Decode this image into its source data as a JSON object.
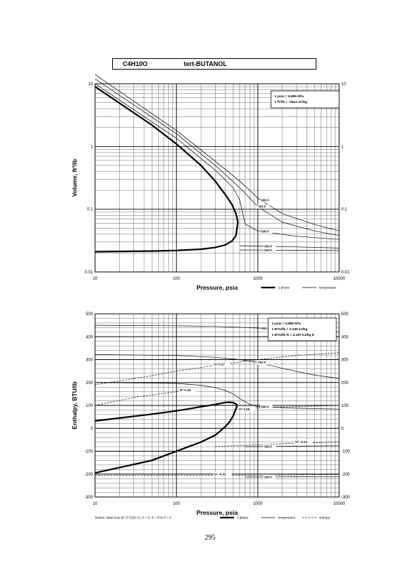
{
  "header": {
    "formula": "C4H10O",
    "compound": "tert-BUTANOL"
  },
  "page_number": "295",
  "chart_data": [
    {
      "type": "line",
      "scale": {
        "x": "log",
        "y": "log"
      },
      "xlabel": "Pressure,  psia",
      "ylabel": "Volume, ft^3/lb",
      "xlim": [
        10,
        10000
      ],
      "ylim": [
        0.01,
        10
      ],
      "x_ticks": [
        "10",
        "100",
        "1000",
        "10000"
      ],
      "y_ticks": [
        "0.01",
        "0.1",
        "1",
        "10"
      ],
      "grid": true,
      "conversions": [
        "1 psia  =  6.895 kPa",
        "1 ft^3/lb  =  .0624 m^3/kg"
      ],
      "legend": [
        {
          "label": "2 phase",
          "style": "thick"
        },
        {
          "label": "temperature",
          "style": "thin"
        }
      ],
      "series": [
        {
          "style": "thick",
          "x": [
            10,
            50,
            100,
            200,
            300,
            400,
            480,
            540,
            570
          ],
          "y": [
            9,
            2.2,
            1.1,
            0.5,
            0.28,
            0.17,
            0.12,
            0.085,
            0.062
          ]
        },
        {
          "style": "thick",
          "x": [
            10,
            50,
            100,
            200,
            300,
            400,
            480,
            540,
            570
          ],
          "y": [
            0.021,
            0.0215,
            0.022,
            0.023,
            0.0245,
            0.027,
            0.031,
            0.038,
            0.062
          ]
        },
        {
          "name": "100 F",
          "style": "thin",
          "x": [
            600,
            1000,
            3000,
            10000
          ],
          "y": [
            0.0224,
            0.0223,
            0.0221,
            0.0219
          ]
        },
        {
          "name": "300 F",
          "style": "thin",
          "x": [
            600,
            1000,
            3000,
            10000
          ],
          "y": [
            0.0262,
            0.0258,
            0.025,
            0.024
          ]
        },
        {
          "name": "500 F",
          "style": "thin",
          "x": [
            10,
            100,
            300,
            500,
            600,
            700,
            1000,
            3000,
            10000
          ],
          "y": [
            10,
            1.35,
            0.42,
            0.22,
            0.14,
            0.058,
            0.045,
            0.037,
            0.033
          ]
        },
        {
          "name": "700 F",
          "style": "thin",
          "x": [
            10,
            100,
            300,
            600,
            700,
            1000,
            2000,
            5000,
            10000
          ],
          "y": [
            12,
            1.6,
            0.5,
            0.22,
            0.18,
            0.11,
            0.062,
            0.045,
            0.038
          ]
        },
        {
          "name": "900 F",
          "style": "thin",
          "x": [
            10,
            100,
            300,
            600,
            800,
            1000,
            2000,
            5000,
            10000
          ],
          "y": [
            14,
            1.8,
            0.58,
            0.28,
            0.2,
            0.15,
            0.085,
            0.057,
            0.045
          ]
        }
      ]
    },
    {
      "type": "line",
      "scale": {
        "x": "log",
        "y": "linear"
      },
      "xlabel": "Pressure,  psia",
      "ylabel": "Enthalpy, BTU/lb",
      "xlim": [
        10,
        10000
      ],
      "ylim": [
        -300,
        500
      ],
      "x_ticks": [
        "10",
        "100",
        "1000",
        "10000"
      ],
      "y_ticks": [
        "-300",
        "-200",
        "-100",
        "0",
        "100",
        "200",
        "300",
        "400",
        "500"
      ],
      "grid": true,
      "conversions": [
        "1 psia  =  6.895 kPa",
        "1 BTU/lb  =  2.326 kJ/kg",
        "1 BTU/lb R  =  4.187 kJ/kg K"
      ],
      "legend": [
        {
          "label": "2 phase",
          "style": "thick"
        },
        {
          "label": "temperature",
          "style": "thin"
        },
        {
          "label": "entropy",
          "style": "dashed"
        }
      ],
      "footnote": "Datum: Ideal Gas @ 77 F(25 C),  H = 0,  S = R ln P = 0",
      "series": [
        {
          "style": "thick",
          "x": [
            10,
            50,
            100,
            200,
            300,
            400,
            450,
            500,
            560
          ],
          "y": [
            32,
            62,
            76,
            94,
            104,
            113,
            114,
            112,
            102
          ]
        },
        {
          "style": "thick",
          "x": [
            10,
            50,
            100,
            200,
            300,
            400,
            450,
            500,
            560
          ],
          "y": [
            -195,
            -140,
            -100,
            -60,
            -30,
            8,
            28,
            55,
            102
          ]
        },
        {
          "name": "900 F",
          "style": "thin",
          "x": [
            10,
            100,
            300,
            1000,
            3000,
            10000
          ],
          "y": [
            450,
            448,
            445,
            438,
            428,
            420
          ]
        },
        {
          "name": "700 F",
          "style": "thin",
          "x": [
            10,
            100,
            300,
            600,
            1000,
            2000,
            5000,
            10000
          ],
          "y": [
            322,
            318,
            310,
            300,
            288,
            262,
            232,
            218
          ]
        },
        {
          "name": "500 F",
          "style": "thin",
          "x": [
            10,
            100,
            200,
            300,
            400,
            500,
            600,
            800,
            1000,
            3000,
            10000
          ],
          "y": [
            200,
            196,
            188,
            178,
            165,
            150,
            130,
            105,
            95,
            88,
            84
          ]
        },
        {
          "name": "300 F",
          "style": "thin",
          "x": [
            700,
            1000,
            3000,
            10000
          ],
          "y": [
            -80,
            -80,
            -78,
            -76
          ]
        },
        {
          "name": "100 F",
          "style": "thin",
          "x": [
            700,
            1000,
            3000,
            10000
          ],
          "y": [
            -213,
            -213,
            -212,
            -211
          ]
        },
        {
          "name": "S= 0.27",
          "style": "dashed",
          "x": [
            10,
            50,
            100,
            300,
            1000,
            3000,
            10000
          ],
          "y": [
            190,
            230,
            250,
            275,
            300,
            318,
            330
          ]
        },
        {
          "name": "S= 0.16",
          "style": "dashed",
          "x": [
            10,
            30,
            100,
            170
          ],
          "y": [
            100,
            135,
            160,
            168
          ]
        },
        {
          "name": "S= 0.05",
          "style": "dashed",
          "x": [
            560,
            1000,
            3000,
            10000
          ],
          "y": [
            85,
            90,
            95,
            100
          ]
        },
        {
          "name": "S= -0.13",
          "style": "dashed",
          "x": [
            300,
            1000,
            3000,
            10000
          ],
          "y": [
            -80,
            -72,
            -65,
            -60
          ]
        },
        {
          "name": "S= -0.32",
          "style": "dashed",
          "x": [
            10,
            100,
            300,
            1000,
            10000
          ],
          "y": [
            -205,
            -206,
            -206,
            -205,
            -202
          ]
        }
      ]
    }
  ]
}
